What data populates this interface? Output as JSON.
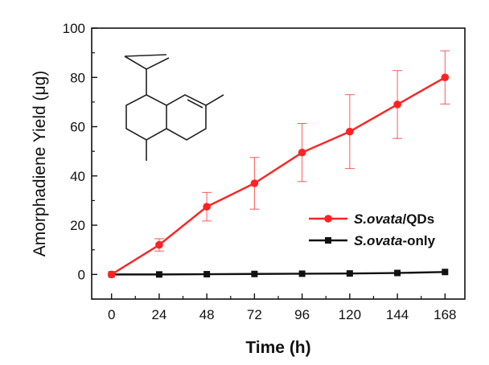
{
  "chart_data": {
    "type": "line",
    "xlabel": "Time (h)",
    "ylabel": "Amorphadiene Yield (μg)",
    "x": [
      0,
      24,
      48,
      72,
      96,
      120,
      144,
      168
    ],
    "xlim": [
      -10,
      178
    ],
    "ylim": [
      -10,
      100
    ],
    "xticks": [
      0,
      24,
      48,
      72,
      96,
      120,
      144,
      168
    ],
    "yticks": [
      0,
      20,
      40,
      60,
      80,
      100
    ],
    "grid": false,
    "legend_position": "lower-right",
    "series": [
      {
        "name_italic": "S.ovata",
        "name_suffix": "/QDs",
        "color": "#ff2222",
        "marker": "circle",
        "values": [
          0,
          12,
          27.5,
          37,
          49.5,
          58,
          69,
          80
        ],
        "error": [
          0,
          2.5,
          5.8,
          10.5,
          11.8,
          15,
          13.8,
          10.8
        ]
      },
      {
        "name_italic": "S.ovata",
        "name_suffix": "-only",
        "color": "#111111",
        "marker": "square",
        "values": [
          0,
          0,
          0.1,
          0.2,
          0.3,
          0.4,
          0.6,
          1.0
        ],
        "error": [
          0,
          0,
          0,
          0,
          0,
          0,
          0,
          0
        ]
      }
    ],
    "inset": "molecular-structure-amorphadiene"
  }
}
